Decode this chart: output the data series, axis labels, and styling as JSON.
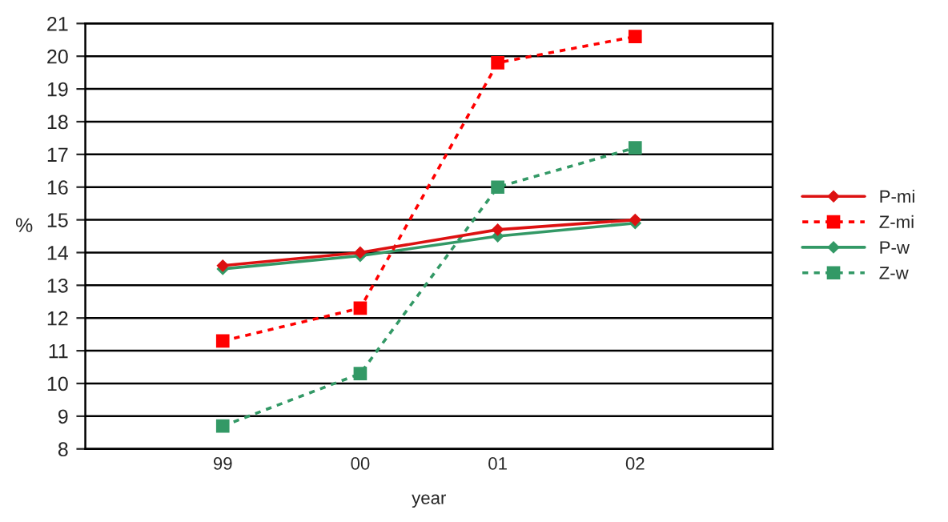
{
  "chart_data": {
    "type": "line",
    "xlabel": "year",
    "ylabel": "%",
    "categories": [
      null,
      "99",
      "00",
      "01",
      "02",
      null
    ],
    "series": [
      {
        "name": "P-mi",
        "color": "#dd1111",
        "values": [
          null,
          13.6,
          14.0,
          14.7,
          15.0,
          null
        ],
        "marker": "diamond",
        "line_style": "solid"
      },
      {
        "name": "Z-mi",
        "color": "#ff0000",
        "values": [
          null,
          11.3,
          12.3,
          19.8,
          20.6,
          null
        ],
        "marker": "square",
        "line_style": "dotted"
      },
      {
        "name": "P-w",
        "color": "#339966",
        "values": [
          null,
          13.5,
          13.9,
          14.5,
          14.9,
          null
        ],
        "marker": "diamond",
        "line_style": "solid"
      },
      {
        "name": "Z-w",
        "color": "#339966",
        "values": [
          null,
          8.7,
          10.3,
          16.0,
          17.2,
          null
        ],
        "marker": "square",
        "line_style": "dotted"
      }
    ],
    "ylim": [
      8,
      21
    ],
    "yticks": [
      8,
      9,
      10,
      11,
      12,
      13,
      14,
      15,
      16,
      17,
      18,
      19,
      20,
      21
    ],
    "grid": "y",
    "legend": "right"
  }
}
